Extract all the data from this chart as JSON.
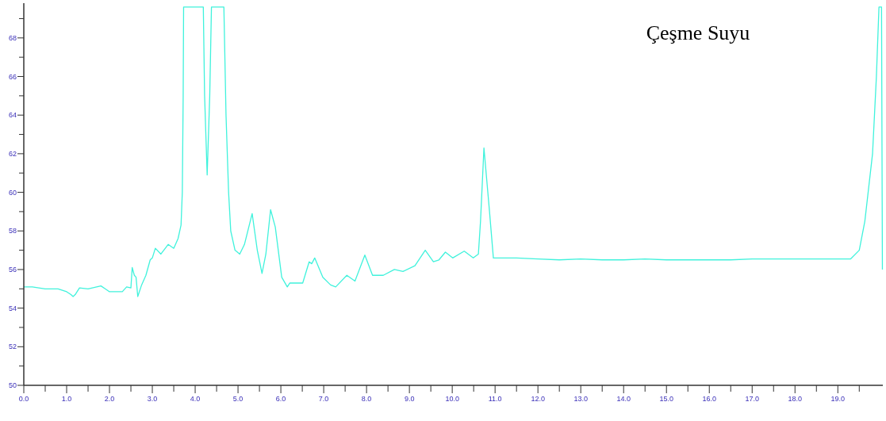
{
  "chart_data": {
    "type": "line",
    "title": "Çeşme Suyu",
    "grid": false,
    "marker": "none",
    "line_style": "solid",
    "xlim": [
      0,
      20.05
    ],
    "ylim": [
      50,
      69.8
    ],
    "xticks": [
      {
        "value": 0,
        "label": "0.0"
      },
      {
        "value": 0.5,
        "label": null
      },
      {
        "value": 1,
        "label": "1.0"
      },
      {
        "value": 1.5,
        "label": null
      },
      {
        "value": 2,
        "label": "2.0"
      },
      {
        "value": 2.5,
        "label": null
      },
      {
        "value": 3,
        "label": "3.0"
      },
      {
        "value": 3.5,
        "label": null
      },
      {
        "value": 4,
        "label": "4.0"
      },
      {
        "value": 4.5,
        "label": null
      },
      {
        "value": 5,
        "label": "5.0"
      },
      {
        "value": 5.5,
        "label": null
      },
      {
        "value": 6,
        "label": "6.0"
      },
      {
        "value": 6.5,
        "label": null
      },
      {
        "value": 7,
        "label": "7.0"
      },
      {
        "value": 7.5,
        "label": null
      },
      {
        "value": 8,
        "label": "8.0"
      },
      {
        "value": 8.5,
        "label": null
      },
      {
        "value": 9,
        "label": "9.0"
      },
      {
        "value": 9.5,
        "label": null
      },
      {
        "value": 10,
        "label": "10.0"
      },
      {
        "value": 10.5,
        "label": null
      },
      {
        "value": 11,
        "label": "11.0"
      },
      {
        "value": 11.5,
        "label": null
      },
      {
        "value": 12,
        "label": "12.0"
      },
      {
        "value": 12.5,
        "label": null
      },
      {
        "value": 13,
        "label": "13.0"
      },
      {
        "value": 13.5,
        "label": null
      },
      {
        "value": 14,
        "label": "14.0"
      },
      {
        "value": 14.5,
        "label": null
      },
      {
        "value": 15,
        "label": "15.0"
      },
      {
        "value": 15.5,
        "label": null
      },
      {
        "value": 16,
        "label": "16.0"
      },
      {
        "value": 16.5,
        "label": null
      },
      {
        "value": 17,
        "label": "17.0"
      },
      {
        "value": 17.5,
        "label": null
      },
      {
        "value": 18,
        "label": "18.0"
      },
      {
        "value": 18.5,
        "label": null
      },
      {
        "value": 19,
        "label": "19.0"
      },
      {
        "value": 19.5,
        "label": null
      }
    ],
    "yticks": [
      50,
      {
        "value": 51,
        "label": null
      },
      52,
      {
        "value": 53,
        "label": null
      },
      54,
      {
        "value": 55,
        "label": null
      },
      56,
      {
        "value": 57,
        "label": null
      },
      58,
      {
        "value": 59,
        "label": null
      },
      60,
      {
        "value": 61,
        "label": null
      },
      62,
      {
        "value": 63,
        "label": null
      },
      64,
      {
        "value": 65,
        "label": null
      },
      66,
      {
        "value": 67,
        "label": null
      },
      68,
      {
        "value": 69,
        "label": null
      }
    ],
    "series": [
      {
        "color": "#40f2dc",
        "x": [
          0,
          0.2,
          0.5,
          0.8,
          1.0,
          1.1,
          1.15,
          1.2,
          1.3,
          1.5,
          1.8,
          1.9,
          2.0,
          2.3,
          2.4,
          2.5,
          2.53,
          2.58,
          2.62,
          2.66,
          2.75,
          2.85,
          2.95,
          3.0,
          3.07,
          3.2,
          3.37,
          3.5,
          3.6,
          3.67,
          3.7,
          3.72,
          3.73,
          4.19,
          4.22,
          4.28,
          4.34,
          4.38,
          4.67,
          4.72,
          4.78,
          4.83,
          4.93,
          5.04,
          5.15,
          5.33,
          5.45,
          5.56,
          5.65,
          5.76,
          5.87,
          6.02,
          6.15,
          6.21,
          6.51,
          6.66,
          6.72,
          6.79,
          6.98,
          7.16,
          7.28,
          7.54,
          7.73,
          7.96,
          8.14,
          8.39,
          8.65,
          8.85,
          9.13,
          9.37,
          9.56,
          9.69,
          9.84,
          10.01,
          10.28,
          10.49,
          10.61,
          10.66,
          10.74,
          10.87,
          10.96,
          11.5,
          12.0,
          12.5,
          13.0,
          13.5,
          14.0,
          14.5,
          15.0,
          15.5,
          16.0,
          16.5,
          17.0,
          17.5,
          18.0,
          18.5,
          19.0,
          19.3,
          19.5,
          19.63,
          19.81,
          19.9,
          19.96,
          20.02,
          20.04
        ],
        "values": [
          55.1,
          55.1,
          55.0,
          55.0,
          54.85,
          54.7,
          54.6,
          54.7,
          55.05,
          55.0,
          55.15,
          55.0,
          54.85,
          54.85,
          55.1,
          55.05,
          56.1,
          55.7,
          55.6,
          54.6,
          55.2,
          55.7,
          56.5,
          56.6,
          57.1,
          56.8,
          57.3,
          57.1,
          57.6,
          58.3,
          60.0,
          65.0,
          69.6,
          69.6,
          65.0,
          60.9,
          65.0,
          69.6,
          69.6,
          64.0,
          60.0,
          58.0,
          57.0,
          56.8,
          57.3,
          58.9,
          57.0,
          55.8,
          56.8,
          59.1,
          58.2,
          55.6,
          55.1,
          55.3,
          55.3,
          56.4,
          56.3,
          56.6,
          55.6,
          55.2,
          55.1,
          55.7,
          55.4,
          56.75,
          55.7,
          55.7,
          56.0,
          55.9,
          56.2,
          57.0,
          56.4,
          56.5,
          56.9,
          56.6,
          56.95,
          56.6,
          56.8,
          58.5,
          62.3,
          59.0,
          56.6,
          56.6,
          56.55,
          56.5,
          56.55,
          56.5,
          56.5,
          56.55,
          56.5,
          56.5,
          56.5,
          56.5,
          56.55,
          56.55,
          56.55,
          56.55,
          56.55,
          56.55,
          57.0,
          58.5,
          62.0,
          66.0,
          69.6,
          69.6,
          56.0
        ]
      }
    ]
  }
}
